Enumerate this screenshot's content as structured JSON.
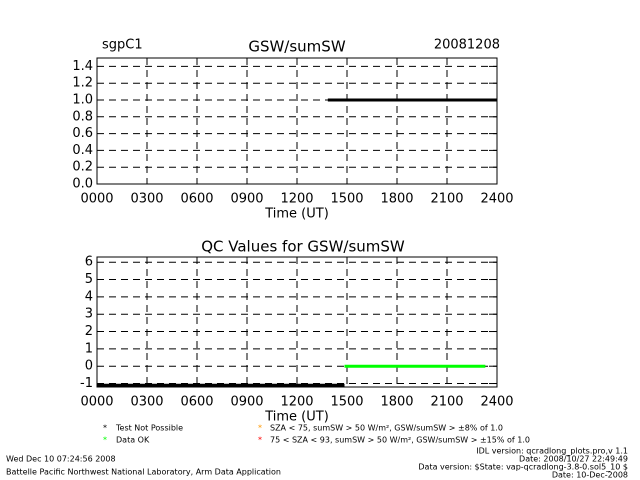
{
  "chart_data": [
    {
      "type": "line",
      "title": "GSW/sumSW",
      "left_label": "sgpC1",
      "right_label": "20081208",
      "xlabel": "Time (UT)",
      "xlim": [
        0,
        24
      ],
      "xticks": [
        {
          "value": 0,
          "label": "0000"
        },
        {
          "value": 3,
          "label": "0300"
        },
        {
          "value": 6,
          "label": "0600"
        },
        {
          "value": 9,
          "label": "0900"
        },
        {
          "value": 12,
          "label": "1200"
        },
        {
          "value": 15,
          "label": "1500"
        },
        {
          "value": 18,
          "label": "1800"
        },
        {
          "value": 21,
          "label": "2100"
        },
        {
          "value": 24,
          "label": "2400"
        }
      ],
      "ylim": [
        0,
        1.5
      ],
      "yticks": [
        {
          "value": 0,
          "label": "0.0"
        },
        0.2,
        0.4,
        0.6,
        0.8,
        {
          "value": 1,
          "label": "1.0"
        },
        1.2,
        1.4
      ],
      "grid": true,
      "series": [
        {
          "color": "#000000",
          "x": [
            13.85,
            24
          ],
          "values": [
            1,
            1
          ]
        }
      ]
    },
    {
      "type": "line",
      "title": "QC Values for GSW/sumSW",
      "xlabel": "Time (UT)",
      "xlim": [
        0,
        24
      ],
      "xticks": [
        {
          "value": 0,
          "label": "0000"
        },
        {
          "value": 3,
          "label": "0300"
        },
        {
          "value": 6,
          "label": "0600"
        },
        {
          "value": 9,
          "label": "0900"
        },
        {
          "value": 12,
          "label": "1200"
        },
        {
          "value": 15,
          "label": "1500"
        },
        {
          "value": 18,
          "label": "1800"
        },
        {
          "value": 21,
          "label": "2100"
        },
        {
          "value": 24,
          "label": "2400"
        }
      ],
      "ylim": [
        -1.2,
        6.3
      ],
      "yticks": [
        -1,
        0,
        1,
        2,
        3,
        4,
        5,
        6
      ],
      "grid": true,
      "series": [
        {
          "name": "Test Not Possible",
          "color": "#000000",
          "x": [
            0,
            14.85
          ],
          "values": [
            -1.1,
            -1.1
          ]
        },
        {
          "name": "Data OK",
          "color": "#00ff00",
          "x": [
            14.85,
            23.3
          ],
          "values": [
            0,
            0
          ]
        },
        {
          "name": "SZA < 75, sumSW > 50 W/m², GSW/sumSW > ±8% of 1.0",
          "color": "#ff9900",
          "x": [],
          "values": []
        },
        {
          "name": "75 < SZA < 93, sumSW > 50 W/m², GSW/sumSW > ±15% of 1.0",
          "color": "#ff0000",
          "x": [],
          "values": []
        }
      ]
    }
  ],
  "footer": {
    "timestamp": "Wed Dec 10 07:24:56 2008",
    "organization": "Battelle Pacific Northwest National Laboratory, Arm Data Application",
    "idl_version": "IDL version: qcradlong_plots.pro,v 1.1",
    "idl_date": "Date: 2008/10/27 22:49:49",
    "data_version": "Data version: $State: vap-qcradlong-3.8-0.sol5_10 $",
    "data_date": "Date: 10-Dec-2008"
  }
}
